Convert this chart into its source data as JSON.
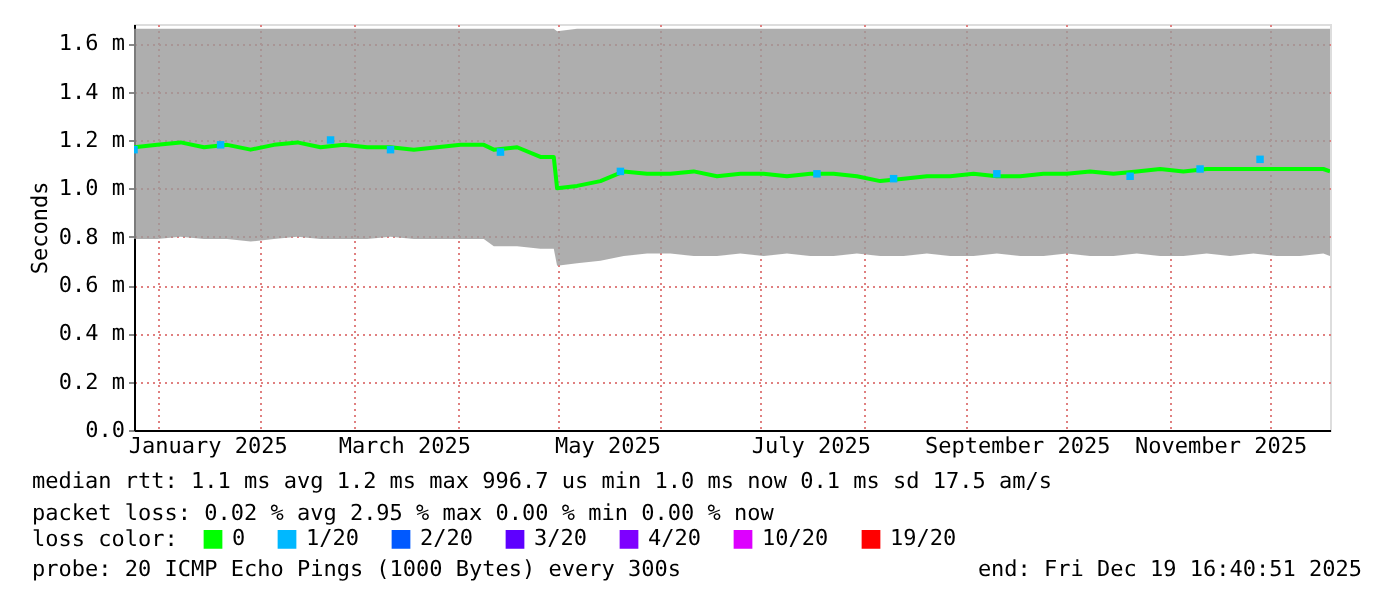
{
  "chart_data": {
    "type": "line",
    "ylabel": "Seconds",
    "legend_title": "loss color:",
    "legend": "bottom",
    "grid": true,
    "line_style": "solid",
    "xlim": [
      "2024-12-25",
      "2025-12-19"
    ],
    "xticks": [
      {
        "value": "2025-01-01",
        "label": null
      },
      {
        "value": "2025-01-16",
        "label": "January 2025"
      },
      {
        "value": "2025-02-01",
        "label": null
      },
      {
        "value": "2025-03-01",
        "label": null
      },
      {
        "value": "2025-03-16",
        "label": "March 2025"
      },
      {
        "value": "2025-04-01",
        "label": null
      },
      {
        "value": "2025-05-01",
        "label": null
      },
      {
        "value": "2025-05-16",
        "label": "May 2025"
      },
      {
        "value": "2025-06-01",
        "label": null
      },
      {
        "value": "2025-07-01",
        "label": null
      },
      {
        "value": "2025-07-16",
        "label": "July 2025"
      },
      {
        "value": "2025-08-01",
        "label": null
      },
      {
        "value": "2025-09-01",
        "label": null
      },
      {
        "value": "2025-09-16",
        "label": "September 2025"
      },
      {
        "value": "2025-10-01",
        "label": null
      },
      {
        "value": "2025-11-01",
        "label": null
      },
      {
        "value": "2025-11-16",
        "label": "November 2025"
      },
      {
        "value": "2025-12-01",
        "label": null
      }
    ],
    "ylim": [
      0,
      1.68
    ],
    "yticks": [
      {
        "value": 0,
        "label": "0.0"
      },
      {
        "value": 0.2,
        "label": "0.2 m"
      },
      {
        "value": 0.4,
        "label": "0.4 m"
      },
      {
        "value": 0.6,
        "label": "0.6 m"
      },
      {
        "value": 0.8,
        "label": "0.8 m"
      },
      {
        "value": 1.0,
        "label": "1.0 m"
      },
      {
        "value": 1.2,
        "label": "1.2 m"
      },
      {
        "value": 1.4,
        "label": "1.4 m"
      },
      {
        "value": 1.6,
        "label": "1.6 m"
      }
    ],
    "series": [
      {
        "name": "0",
        "color": "#00ff00",
        "x": [
          "2024-12-25",
          "2025-01-01",
          "2025-01-08",
          "2025-01-15",
          "2025-01-22",
          "2025-01-29",
          "2025-02-05",
          "2025-02-12",
          "2025-02-19",
          "2025-02-26",
          "2025-03-05",
          "2025-03-12",
          "2025-03-19",
          "2025-03-26",
          "2025-04-02",
          "2025-04-09",
          "2025-04-12",
          "2025-04-19",
          "2025-04-26",
          "2025-04-30",
          "2025-05-01",
          "2025-05-07",
          "2025-05-14",
          "2025-05-21",
          "2025-05-28",
          "2025-06-04",
          "2025-06-11",
          "2025-06-18",
          "2025-06-25",
          "2025-07-02",
          "2025-07-09",
          "2025-07-16",
          "2025-07-23",
          "2025-07-30",
          "2025-08-06",
          "2025-08-13",
          "2025-08-20",
          "2025-08-27",
          "2025-09-03",
          "2025-09-10",
          "2025-09-17",
          "2025-09-24",
          "2025-10-01",
          "2025-10-08",
          "2025-10-15",
          "2025-10-22",
          "2025-10-29",
          "2025-11-05",
          "2025-11-12",
          "2025-11-19",
          "2025-11-26",
          "2025-12-03",
          "2025-12-10",
          "2025-12-17",
          "2025-12-19"
        ],
        "values": [
          1.17,
          1.18,
          1.19,
          1.17,
          1.18,
          1.16,
          1.18,
          1.19,
          1.17,
          1.18,
          1.17,
          1.17,
          1.16,
          1.17,
          1.18,
          1.18,
          1.16,
          1.17,
          1.13,
          1.13,
          1.0,
          1.01,
          1.03,
          1.07,
          1.06,
          1.06,
          1.07,
          1.05,
          1.06,
          1.06,
          1.05,
          1.06,
          1.06,
          1.05,
          1.03,
          1.04,
          1.05,
          1.05,
          1.06,
          1.05,
          1.05,
          1.06,
          1.06,
          1.07,
          1.06,
          1.07,
          1.08,
          1.07,
          1.08,
          1.08,
          1.08,
          1.08,
          1.08,
          1.08,
          1.07
        ],
        "lower": [
          0.79,
          0.79,
          0.8,
          0.79,
          0.79,
          0.78,
          0.79,
          0.8,
          0.79,
          0.79,
          0.79,
          0.8,
          0.79,
          0.79,
          0.79,
          0.79,
          0.76,
          0.76,
          0.75,
          0.75,
          0.68,
          0.69,
          0.7,
          0.72,
          0.73,
          0.73,
          0.72,
          0.72,
          0.73,
          0.72,
          0.73,
          0.72,
          0.72,
          0.73,
          0.72,
          0.72,
          0.73,
          0.72,
          0.72,
          0.73,
          0.72,
          0.72,
          0.73,
          0.72,
          0.72,
          0.73,
          0.72,
          0.72,
          0.73,
          0.72,
          0.73,
          0.72,
          0.72,
          0.73,
          0.72
        ],
        "upper": [
          1.66,
          1.66,
          1.66,
          1.66,
          1.66,
          1.66,
          1.66,
          1.66,
          1.66,
          1.66,
          1.66,
          1.66,
          1.66,
          1.66,
          1.66,
          1.66,
          1.66,
          1.66,
          1.66,
          1.66,
          1.65,
          1.66,
          1.66,
          1.66,
          1.66,
          1.66,
          1.66,
          1.66,
          1.66,
          1.66,
          1.66,
          1.66,
          1.66,
          1.66,
          1.66,
          1.66,
          1.66,
          1.66,
          1.66,
          1.66,
          1.66,
          1.66,
          1.66,
          1.66,
          1.66,
          1.66,
          1.66,
          1.66,
          1.66,
          1.66,
          1.66,
          1.66,
          1.66,
          1.66,
          1.66
        ]
      },
      {
        "name": "1/20",
        "color": "#00b8ff",
        "type": "scatter",
        "x": [
          "2024-12-25",
          "2025-01-20",
          "2025-02-22",
          "2025-03-12",
          "2025-04-14",
          "2025-05-20",
          "2025-07-18",
          "2025-08-10",
          "2025-09-10",
          "2025-10-20",
          "2025-11-10",
          "2025-11-28"
        ],
        "values": [
          1.16,
          1.18,
          1.2,
          1.16,
          1.15,
          1.07,
          1.06,
          1.04,
          1.06,
          1.05,
          1.08,
          1.12
        ]
      },
      {
        "name": "2/20",
        "color": "#0059ff",
        "type": "scatter"
      },
      {
        "name": "3/20",
        "color": "#5e00ff",
        "type": "scatter"
      },
      {
        "name": "4/20",
        "color": "#7e00ff",
        "type": "scatter"
      },
      {
        "name": "10/20",
        "color": "#dd00ff",
        "type": "scatter"
      },
      {
        "name": "19/20",
        "color": "#ff0000",
        "type": "scatter"
      }
    ],
    "annotations": [
      "median rtt:  1.1 ms avg  1.2 ms max  996.7 us min  1.0 ms now  0.1 ms sd  17.5   am/s",
      "packet loss: 0.02 % avg  2.95 % max  0.00 % min  0.00 % now",
      "probe:       20 ICMP Echo Pings (1000 Bytes) every 300s",
      "end: Fri Dec 19 16:40:51 2025"
    ]
  }
}
